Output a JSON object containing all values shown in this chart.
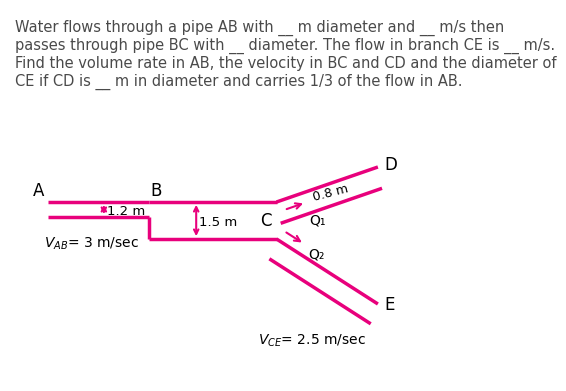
{
  "text_block": "Water flows through a pipe AB with __ m diameter and __ m/s then\npasses through pipe BC with __ diameter. The flow in branch CE is __ m/s.\nFind the volume rate in AB, the velocity in BC and CD and the diameter of\nCE if CD is __ m in diameter and carries 1/3 of the flow in AB.",
  "pipe_color": "#E8007C",
  "text_color": "#4a4a4a",
  "label_color": "#000000",
  "bg_color": "#ffffff",
  "pipe_linewidth": 2.5,
  "font_size_text": 10.5,
  "font_size_labels": 11,
  "font_size_small": 9.5,
  "label_A": "A",
  "label_B": "B",
  "label_C": "C",
  "label_D": "D",
  "label_E": "E",
  "label_Q1": "Q₁",
  "label_Q2": "Q₂",
  "label_08m": "0.8 m",
  "label_12m": "1.2 m",
  "label_15m": "1.5 m"
}
